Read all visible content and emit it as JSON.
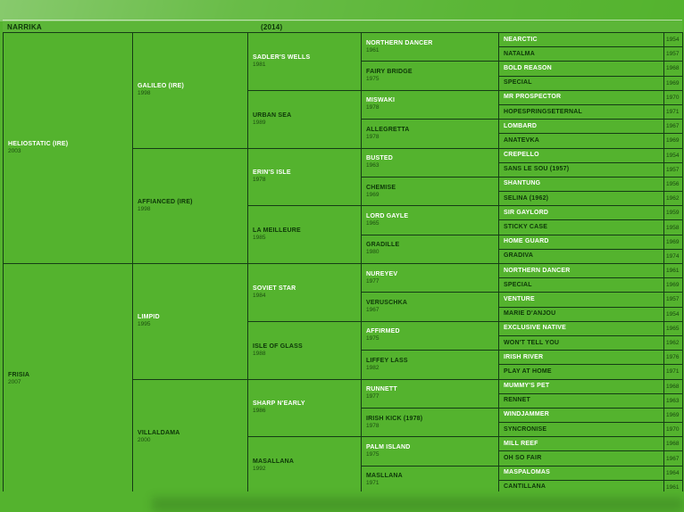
{
  "window": {
    "background": "#54b32e",
    "grid_line": "#153c15",
    "sire_text": "#ffffff",
    "dam_text": "#0d3608"
  },
  "header": {
    "name": "NARRIKA",
    "year": "(2014)"
  },
  "generations": {
    "gen1": [
      {
        "name": "HELIOSTATIC (IRE)",
        "year": "2003"
      },
      {
        "name": "FRISIA",
        "year": "2007"
      }
    ],
    "gen2": [
      {
        "name": "GALILEO (IRE)",
        "year": "1998"
      },
      {
        "name": "AFFIANCED (IRE)",
        "year": "1998"
      },
      {
        "name": "LIMPID",
        "year": "1995"
      },
      {
        "name": "VILLALDAMA",
        "year": "2000"
      }
    ],
    "gen3": [
      {
        "name": "SADLER'S WELLS",
        "year": "1981"
      },
      {
        "name": "URBAN SEA",
        "year": "1989"
      },
      {
        "name": "ERIN'S ISLE",
        "year": "1978"
      },
      {
        "name": "LA MEILLEURE",
        "year": "1985"
      },
      {
        "name": "SOVIET STAR",
        "year": "1984"
      },
      {
        "name": "ISLE OF GLASS",
        "year": "1988"
      },
      {
        "name": "SHARP N'EARLY",
        "year": "1986"
      },
      {
        "name": "MASALLANA",
        "year": "1992"
      }
    ],
    "gen4": [
      {
        "name": "NORTHERN DANCER",
        "year": "1961"
      },
      {
        "name": "FAIRY BRIDGE",
        "year": "1975"
      },
      {
        "name": "MISWAKI",
        "year": "1978"
      },
      {
        "name": "ALLEGRETTA",
        "year": "1978"
      },
      {
        "name": "BUSTED",
        "year": "1963"
      },
      {
        "name": "CHEMISE",
        "year": "1969"
      },
      {
        "name": "LORD GAYLE",
        "year": "1965"
      },
      {
        "name": "GRADILLE",
        "year": "1980"
      },
      {
        "name": "NUREYEV",
        "year": "1977"
      },
      {
        "name": "VERUSCHKA",
        "year": "1967"
      },
      {
        "name": "AFFIRMED",
        "year": "1975"
      },
      {
        "name": "LIFFEY LASS",
        "year": "1982"
      },
      {
        "name": "RUNNETT",
        "year": "1977"
      },
      {
        "name": "IRISH KICK (1978)",
        "year": "1978"
      },
      {
        "name": "PALM ISLAND",
        "year": "1975"
      },
      {
        "name": "MASLLANA",
        "year": "1971"
      }
    ],
    "gen5": [
      {
        "name": "NEARCTIC",
        "year": "1954"
      },
      {
        "name": "NATALMA",
        "year": "1957"
      },
      {
        "name": "BOLD REASON",
        "year": "1968"
      },
      {
        "name": "SPECIAL",
        "year": "1969"
      },
      {
        "name": "MR PROSPECTOR",
        "year": "1970"
      },
      {
        "name": "HOPESPRINGSETERNAL",
        "year": "1971"
      },
      {
        "name": "LOMBARD",
        "year": "1967"
      },
      {
        "name": "ANATEVKA",
        "year": "1969"
      },
      {
        "name": "CREPELLO",
        "year": "1954"
      },
      {
        "name": "SANS LE SOU (1957)",
        "year": "1957"
      },
      {
        "name": "SHANTUNG",
        "year": "1956"
      },
      {
        "name": "SELINA (1962)",
        "year": "1962"
      },
      {
        "name": "SIR GAYLORD",
        "year": "1959"
      },
      {
        "name": "STICKY CASE",
        "year": "1958"
      },
      {
        "name": "HOME GUARD",
        "year": "1969"
      },
      {
        "name": "GRADIVA",
        "year": "1974"
      },
      {
        "name": "NORTHERN DANCER",
        "year": "1961"
      },
      {
        "name": "SPECIAL",
        "year": "1969"
      },
      {
        "name": "VENTURE",
        "year": "1957"
      },
      {
        "name": "MARIE D'ANJOU",
        "year": "1954"
      },
      {
        "name": "EXCLUSIVE NATIVE",
        "year": "1965"
      },
      {
        "name": "WON'T TELL YOU",
        "year": "1962"
      },
      {
        "name": "IRISH RIVER",
        "year": "1976"
      },
      {
        "name": "PLAY AT HOME",
        "year": "1971"
      },
      {
        "name": "MUMMY'S PET",
        "year": "1968"
      },
      {
        "name": "RENNET",
        "year": "1963"
      },
      {
        "name": "WINDJAMMER",
        "year": "1969"
      },
      {
        "name": "SYNCRONISE",
        "year": "1970"
      },
      {
        "name": "MILL REEF",
        "year": "1968"
      },
      {
        "name": "OH SO FAIR",
        "year": "1967"
      },
      {
        "name": "MASPALOMAS",
        "year": "1964"
      },
      {
        "name": "CANTILLANA",
        "year": "1961"
      }
    ]
  }
}
